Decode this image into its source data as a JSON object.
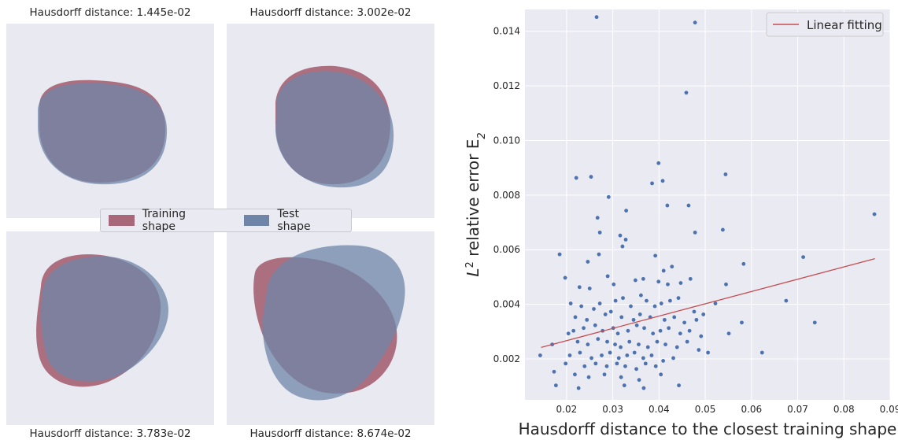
{
  "panels": [
    {
      "title": "Hausdorff distance: 1.445e-02"
    },
    {
      "title": "Hausdorff distance: 3.002e-02"
    },
    {
      "title": "Hausdorff distance: 3.783e-02"
    },
    {
      "title": "Hausdorff distance: 8.674e-02"
    }
  ],
  "legend": {
    "training_label": "Training shape",
    "test_label": "Test shape",
    "training_color": "#a86879",
    "test_color": "#6f85a8",
    "overlap_color": "#5a4f76"
  },
  "chart_data": {
    "type": "scatter",
    "xlabel": "Hausdorff distance to the closest training shape",
    "ylabel_parts": {
      "base": "L",
      "sup": "2",
      "middle": " relative error E",
      "sub": "2"
    },
    "xlim": [
      0.011,
      0.09
    ],
    "ylim": [
      0.0005,
      0.0148
    ],
    "xticks": [
      "0.02",
      "0.03",
      "0.04",
      "0.05",
      "0.06",
      "0.07",
      "0.08",
      "0.09"
    ],
    "yticks": [
      "0.002",
      "0.004",
      "0.006",
      "0.008",
      "0.010",
      "0.012",
      "0.014"
    ],
    "grid": true,
    "legend_position": "top-right",
    "colors": {
      "points": "#4c72b0",
      "fit": "#c44e52",
      "background": "#eaeaf2",
      "grid": "#ffffff"
    },
    "fit": {
      "name": "Linear fitting",
      "x": [
        0.0145,
        0.0867
      ],
      "y": [
        0.00242,
        0.00567
      ]
    },
    "points": [
      [
        0.0265,
        0.01452
      ],
      [
        0.0478,
        0.01432
      ],
      [
        0.0459,
        0.01175
      ],
      [
        0.0221,
        0.00863
      ],
      [
        0.0253,
        0.00867
      ],
      [
        0.0399,
        0.00917
      ],
      [
        0.0544,
        0.00876
      ],
      [
        0.0385,
        0.00843
      ],
      [
        0.0408,
        0.00852
      ],
      [
        0.0291,
        0.00793
      ],
      [
        0.0329,
        0.00743
      ],
      [
        0.0267,
        0.00717
      ],
      [
        0.0418,
        0.00762
      ],
      [
        0.0464,
        0.00762
      ],
      [
        0.0272,
        0.00663
      ],
      [
        0.0316,
        0.00652
      ],
      [
        0.0478,
        0.00663
      ],
      [
        0.0866,
        0.0073
      ],
      [
        0.0328,
        0.00637
      ],
      [
        0.0538,
        0.00673
      ],
      [
        0.0185,
        0.00583
      ],
      [
        0.0246,
        0.00556
      ],
      [
        0.027,
        0.00583
      ],
      [
        0.0321,
        0.00612
      ],
      [
        0.0392,
        0.00578
      ],
      [
        0.041,
        0.00523
      ],
      [
        0.0428,
        0.00538
      ],
      [
        0.0583,
        0.00548
      ],
      [
        0.0712,
        0.00573
      ],
      [
        0.0197,
        0.00497
      ],
      [
        0.0228,
        0.00463
      ],
      [
        0.025,
        0.00458
      ],
      [
        0.0289,
        0.00503
      ],
      [
        0.0302,
        0.00473
      ],
      [
        0.0349,
        0.00488
      ],
      [
        0.0366,
        0.00493
      ],
      [
        0.0399,
        0.00483
      ],
      [
        0.0419,
        0.00473
      ],
      [
        0.0447,
        0.00478
      ],
      [
        0.0468,
        0.00493
      ],
      [
        0.0545,
        0.00473
      ],
      [
        0.0675,
        0.00413
      ],
      [
        0.0209,
        0.00403
      ],
      [
        0.0232,
        0.00393
      ],
      [
        0.0259,
        0.00383
      ],
      [
        0.0272,
        0.00403
      ],
      [
        0.0306,
        0.00413
      ],
      [
        0.0322,
        0.00423
      ],
      [
        0.0339,
        0.00393
      ],
      [
        0.0361,
        0.00433
      ],
      [
        0.0373,
        0.00413
      ],
      [
        0.0391,
        0.00393
      ],
      [
        0.0405,
        0.00403
      ],
      [
        0.0424,
        0.00413
      ],
      [
        0.0442,
        0.00423
      ],
      [
        0.0476,
        0.00373
      ],
      [
        0.0496,
        0.00363
      ],
      [
        0.0522,
        0.00403
      ],
      [
        0.0219,
        0.00353
      ],
      [
        0.0244,
        0.00343
      ],
      [
        0.0284,
        0.00363
      ],
      [
        0.0296,
        0.00373
      ],
      [
        0.0319,
        0.00353
      ],
      [
        0.0345,
        0.00343
      ],
      [
        0.0359,
        0.00363
      ],
      [
        0.0381,
        0.00353
      ],
      [
        0.0412,
        0.00343
      ],
      [
        0.0433,
        0.00353
      ],
      [
        0.0455,
        0.00333
      ],
      [
        0.0481,
        0.00343
      ],
      [
        0.0579,
        0.00333
      ],
      [
        0.0737,
        0.00333
      ],
      [
        0.0204,
        0.00293
      ],
      [
        0.0215,
        0.00303
      ],
      [
        0.0237,
        0.00313
      ],
      [
        0.0262,
        0.00323
      ],
      [
        0.0278,
        0.00303
      ],
      [
        0.0301,
        0.00313
      ],
      [
        0.0311,
        0.00293
      ],
      [
        0.0333,
        0.00303
      ],
      [
        0.0352,
        0.00323
      ],
      [
        0.0368,
        0.00313
      ],
      [
        0.0387,
        0.00293
      ],
      [
        0.0403,
        0.00303
      ],
      [
        0.0421,
        0.00313
      ],
      [
        0.0446,
        0.00293
      ],
      [
        0.0466,
        0.00303
      ],
      [
        0.0491,
        0.00283
      ],
      [
        0.0551,
        0.00293
      ],
      [
        0.0169,
        0.00253
      ],
      [
        0.0224,
        0.00263
      ],
      [
        0.0246,
        0.00253
      ],
      [
        0.0268,
        0.00273
      ],
      [
        0.0288,
        0.00263
      ],
      [
        0.0305,
        0.00253
      ],
      [
        0.0317,
        0.00243
      ],
      [
        0.0336,
        0.00263
      ],
      [
        0.0356,
        0.00253
      ],
      [
        0.0376,
        0.00243
      ],
      [
        0.0396,
        0.00263
      ],
      [
        0.0414,
        0.00253
      ],
      [
        0.0439,
        0.00243
      ],
      [
        0.0461,
        0.00263
      ],
      [
        0.0486,
        0.00233
      ],
      [
        0.0506,
        0.00223
      ],
      [
        0.0623,
        0.00223
      ],
      [
        0.0143,
        0.00213
      ],
      [
        0.0207,
        0.00213
      ],
      [
        0.0229,
        0.00223
      ],
      [
        0.0254,
        0.00203
      ],
      [
        0.0276,
        0.00213
      ],
      [
        0.0294,
        0.00223
      ],
      [
        0.0313,
        0.00203
      ],
      [
        0.0331,
        0.00213
      ],
      [
        0.0347,
        0.00223
      ],
      [
        0.0366,
        0.00203
      ],
      [
        0.0384,
        0.00213
      ],
      [
        0.0409,
        0.00193
      ],
      [
        0.0431,
        0.00203
      ],
      [
        0.0198,
        0.00183
      ],
      [
        0.0239,
        0.00173
      ],
      [
        0.0263,
        0.00183
      ],
      [
        0.0287,
        0.00173
      ],
      [
        0.0309,
        0.00183
      ],
      [
        0.0327,
        0.00173
      ],
      [
        0.0351,
        0.00163
      ],
      [
        0.0371,
        0.00183
      ],
      [
        0.0393,
        0.00173
      ],
      [
        0.0173,
        0.00153
      ],
      [
        0.0218,
        0.00143
      ],
      [
        0.0248,
        0.00133
      ],
      [
        0.0282,
        0.00143
      ],
      [
        0.0318,
        0.00133
      ],
      [
        0.0357,
        0.00123
      ],
      [
        0.0404,
        0.00143
      ],
      [
        0.0177,
        0.00103
      ],
      [
        0.0226,
        0.00093
      ],
      [
        0.0325,
        0.00103
      ],
      [
        0.0367,
        0.00093
      ],
      [
        0.0443,
        0.00103
      ]
    ]
  }
}
